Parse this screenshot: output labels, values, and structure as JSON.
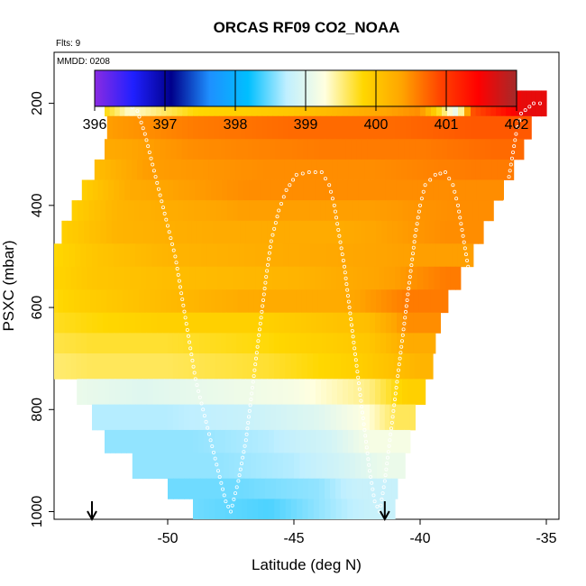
{
  "chart_data": {
    "type": "heatmap",
    "title": "ORCAS RF09 CO2_NOAA",
    "subtitle": "Flts: 9",
    "annotation": "MMDD: 0208",
    "xlabel": "Latitude (deg N)",
    "ylabel": "PSXC (mbar)",
    "xlim": [
      -54.5,
      -34.5
    ],
    "ylim": [
      1015,
      100
    ],
    "y_reversed": true,
    "x_ticks": [
      -50,
      -45,
      -40,
      -35
    ],
    "y_ticks": [
      200,
      400,
      600,
      800,
      1000
    ],
    "colorbar": {
      "min": 396,
      "max": 402,
      "ticks": [
        396,
        397,
        398,
        399,
        400,
        401,
        402
      ],
      "colors": [
        "#8a2be2",
        "#2020ff",
        "#00008b",
        "#1e90ff",
        "#00bfff",
        "#bfefff",
        "#ffffe0",
        "#ffd700",
        "#ffa500",
        "#ff4500",
        "#ff0000",
        "#a52a2a"
      ]
    },
    "pressure_bands": [
      {
        "p": [
          175,
          225
        ],
        "lat": [
          -52.5,
          -35.0
        ],
        "segments": [
          [
            -52.5,
            399.8
          ],
          [
            -51.5,
            399.3
          ],
          [
            -49.0,
            399.8
          ],
          [
            -45.0,
            400.0
          ],
          [
            -42.0,
            400.3
          ],
          [
            -40.0,
            400.5
          ],
          [
            -38.5,
            399.0
          ],
          [
            -38.0,
            400.8
          ],
          [
            -37.0,
            401.2
          ],
          [
            -36.0,
            401.6
          ]
        ]
      },
      {
        "p": [
          225,
          270
        ],
        "lat": [
          -52.4,
          -35.6
        ],
        "segments": [
          [
            -52.4,
            400.4
          ],
          [
            -49.0,
            400.6
          ],
          [
            -45.0,
            400.7
          ],
          [
            -41.0,
            400.7
          ],
          [
            -38.0,
            400.8
          ]
        ]
      },
      {
        "p": [
          270,
          310
        ],
        "lat": [
          -52.5,
          -35.9
        ],
        "segments": [
          [
            -52.5,
            400.3
          ],
          [
            -49.0,
            400.5
          ],
          [
            -44.0,
            400.6
          ],
          [
            -40.0,
            400.6
          ],
          [
            -37.0,
            400.7
          ]
        ]
      },
      {
        "p": [
          310,
          350
        ],
        "lat": [
          -52.9,
          -36.3
        ],
        "segments": [
          [
            -52.9,
            400.1
          ],
          [
            -51.0,
            400.4
          ],
          [
            -46.0,
            400.5
          ],
          [
            -42.0,
            400.5
          ],
          [
            -38.0,
            400.6
          ]
        ]
      },
      {
        "p": [
          350,
          390
        ],
        "lat": [
          -53.4,
          -36.7
        ],
        "segments": [
          [
            -53.4,
            399.9
          ],
          [
            -51.5,
            400.3
          ],
          [
            -47.0,
            400.5
          ],
          [
            -42.0,
            400.5
          ],
          [
            -38.0,
            400.5
          ]
        ]
      },
      {
        "p": [
          390,
          430
        ],
        "lat": [
          -53.8,
          -37.1
        ],
        "segments": [
          [
            -53.8,
            399.9
          ],
          [
            -52.0,
            400.2
          ],
          [
            -47.0,
            400.4
          ],
          [
            -42.0,
            400.4
          ],
          [
            -38.5,
            400.5
          ]
        ]
      },
      {
        "p": [
          430,
          475
        ],
        "lat": [
          -54.2,
          -37.5
        ],
        "segments": [
          [
            -54.2,
            399.9
          ],
          [
            -52.0,
            400.2
          ],
          [
            -48.0,
            400.3
          ],
          [
            -43.0,
            400.3
          ],
          [
            -39.0,
            400.5
          ]
        ]
      },
      {
        "p": [
          475,
          520
        ],
        "lat": [
          -54.6,
          -37.9
        ],
        "segments": [
          [
            -54.6,
            399.8
          ],
          [
            -53.0,
            400.0
          ],
          [
            -50.0,
            400.2
          ],
          [
            -45.0,
            400.3
          ],
          [
            -40.0,
            400.4
          ]
        ]
      },
      {
        "p": [
          520,
          565
        ],
        "lat": [
          -54.9,
          -38.4
        ],
        "segments": [
          [
            -54.9,
            399.8
          ],
          [
            -53.0,
            400.0
          ],
          [
            -50.0,
            400.1
          ],
          [
            -45.0,
            400.2
          ],
          [
            -41.0,
            400.4
          ],
          [
            -39.0,
            400.6
          ]
        ]
      },
      {
        "p": [
          565,
          610
        ],
        "lat": [
          -55.2,
          -38.9
        ],
        "segments": [
          [
            -55.2,
            399.7
          ],
          [
            -53.5,
            399.9
          ],
          [
            -50.5,
            400.1
          ],
          [
            -47.0,
            400.3
          ],
          [
            -43.0,
            400.3
          ],
          [
            -40.5,
            400.6
          ]
        ]
      },
      {
        "p": [
          610,
          650
        ],
        "lat": [
          -55.4,
          -39.2
        ],
        "segments": [
          [
            -55.4,
            399.7
          ],
          [
            -53.0,
            399.8
          ],
          [
            -50.0,
            399.9
          ],
          [
            -46.0,
            399.9
          ],
          [
            -42.0,
            400.1
          ],
          [
            -40.5,
            400.5
          ]
        ]
      },
      {
        "p": [
          650,
          690
        ],
        "lat": [
          -55.6,
          -39.4
        ],
        "segments": [
          [
            -55.6,
            399.6
          ],
          [
            -53.0,
            399.7
          ],
          [
            -50.0,
            399.7
          ],
          [
            -46.0,
            399.8
          ],
          [
            -42.0,
            400.0
          ],
          [
            -40.5,
            400.3
          ]
        ]
      },
      {
        "p": [
          690,
          740
        ],
        "lat": [
          -55.7,
          -39.5
        ],
        "segments": [
          [
            -55.7,
            399.5
          ],
          [
            -53.0,
            399.6
          ],
          [
            -50.0,
            399.6
          ],
          [
            -46.0,
            399.7
          ],
          [
            -42.5,
            399.9
          ],
          [
            -40.0,
            400.2
          ]
        ]
      },
      {
        "p": [
          740,
          790
        ],
        "lat": [
          -53.6,
          -39.8
        ],
        "segments": [
          [
            -53.6,
            399.1
          ],
          [
            -51.0,
            399.0
          ],
          [
            -48.0,
            399.1
          ],
          [
            -45.0,
            399.2
          ],
          [
            -42.0,
            399.5
          ],
          [
            -40.5,
            399.9
          ]
        ]
      },
      {
        "p": [
          790,
          840
        ],
        "lat": [
          -53.0,
          -40.2
        ],
        "segments": [
          [
            -53.0,
            398.7
          ],
          [
            -50.0,
            398.7
          ],
          [
            -47.0,
            398.8
          ],
          [
            -44.0,
            399.0
          ],
          [
            -42.0,
            399.3
          ],
          [
            -41.0,
            399.6
          ]
        ]
      },
      {
        "p": [
          840,
          885
        ],
        "lat": [
          -52.5,
          -40.4
        ],
        "segments": [
          [
            -52.5,
            398.6
          ],
          [
            -49.0,
            398.6
          ],
          [
            -46.0,
            398.7
          ],
          [
            -43.5,
            398.9
          ],
          [
            -42.0,
            399.2
          ]
        ]
      },
      {
        "p": [
          885,
          935
        ],
        "lat": [
          -51.4,
          -40.6
        ],
        "segments": [
          [
            -51.4,
            398.6
          ],
          [
            -48.0,
            398.6
          ],
          [
            -45.0,
            398.7
          ],
          [
            -43.0,
            398.9
          ],
          [
            -41.5,
            399.1
          ]
        ]
      },
      {
        "p": [
          935,
          975
        ],
        "lat": [
          -50.0,
          -40.9
        ],
        "segments": [
          [
            -50.0,
            398.5
          ],
          [
            -47.0,
            398.5
          ],
          [
            -44.0,
            398.6
          ],
          [
            -42.5,
            398.8
          ]
        ]
      },
      {
        "p": [
          975,
          1015
        ],
        "lat": [
          -49.0,
          -41.0
        ],
        "segments": [
          [
            -49.0,
            398.5
          ],
          [
            -46.0,
            398.4
          ],
          [
            -44.0,
            398.6
          ],
          [
            -42.0,
            398.8
          ]
        ]
      }
    ],
    "flight_track": [
      [
        -52.4,
        200
      ],
      [
        -51.6,
        200
      ],
      [
        -51.2,
        215
      ],
      [
        -50.9,
        260
      ],
      [
        -50.6,
        320
      ],
      [
        -50.3,
        380
      ],
      [
        -50.0,
        440
      ],
      [
        -49.7,
        500
      ],
      [
        -49.5,
        560
      ],
      [
        -49.3,
        620
      ],
      [
        -49.1,
        680
      ],
      [
        -48.9,
        740
      ],
      [
        -48.6,
        800
      ],
      [
        -48.3,
        860
      ],
      [
        -48.0,
        920
      ],
      [
        -47.7,
        980
      ],
      [
        -47.5,
        1000
      ],
      [
        -47.2,
        940
      ],
      [
        -46.9,
        860
      ],
      [
        -46.7,
        780
      ],
      [
        -46.5,
        700
      ],
      [
        -46.3,
        620
      ],
      [
        -46.1,
        540
      ],
      [
        -45.9,
        470
      ],
      [
        -45.6,
        410
      ],
      [
        -45.3,
        370
      ],
      [
        -44.9,
        340
      ],
      [
        -44.4,
        335
      ],
      [
        -43.9,
        335
      ],
      [
        -43.6,
        360
      ],
      [
        -43.4,
        400
      ],
      [
        -43.2,
        460
      ],
      [
        -43.0,
        520
      ],
      [
        -42.8,
        600
      ],
      [
        -42.6,
        680
      ],
      [
        -42.4,
        760
      ],
      [
        -42.2,
        840
      ],
      [
        -42.0,
        920
      ],
      [
        -41.8,
        980
      ],
      [
        -41.6,
        1000
      ],
      [
        -41.4,
        940
      ],
      [
        -41.2,
        860
      ],
      [
        -41.0,
        780
      ],
      [
        -40.8,
        700
      ],
      [
        -40.6,
        620
      ],
      [
        -40.4,
        540
      ],
      [
        -40.2,
        460
      ],
      [
        -40.0,
        400
      ],
      [
        -39.8,
        360
      ],
      [
        -39.4,
        340
      ],
      [
        -39.0,
        335
      ],
      [
        -38.7,
        360
      ],
      [
        -38.5,
        400
      ],
      [
        -38.3,
        460
      ],
      [
        -38.1,
        520
      ],
      [
        -37.9,
        600
      ],
      [
        -37.7,
        680
      ],
      [
        -37.6,
        740
      ],
      [
        -37.4,
        680
      ],
      [
        -37.2,
        600
      ],
      [
        -37.0,
        520
      ],
      [
        -36.8,
        440
      ],
      [
        -36.6,
        380
      ],
      [
        -36.4,
        320
      ],
      [
        -36.2,
        260
      ],
      [
        -36.0,
        220
      ],
      [
        -35.5,
        200
      ],
      [
        -35.0,
        200
      ]
    ],
    "arrows": [
      -53.0,
      -41.4
    ]
  }
}
